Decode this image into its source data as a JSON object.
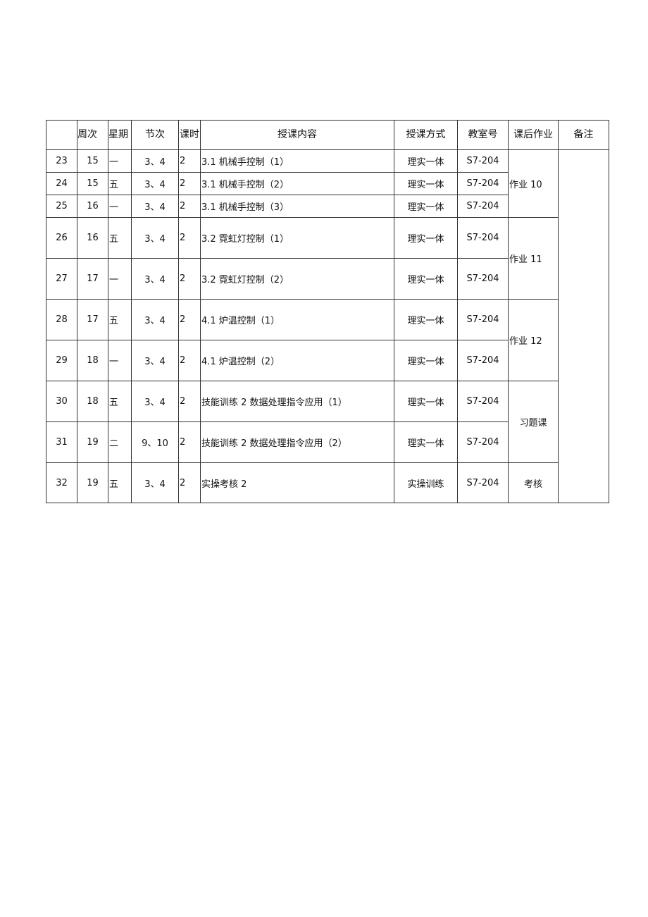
{
  "table": {
    "headers": [
      "",
      "周次",
      "星期",
      "节次",
      "课时",
      "授课内容",
      "授课方式",
      "教室号",
      "课后作业",
      "备注"
    ],
    "rows": [
      {
        "no": "23",
        "week": "15",
        "day": "一",
        "periods": "3、4",
        "hours": "2",
        "content": "3.1 机械手控制（1）",
        "method": "理实一体",
        "room": "S7-204"
      },
      {
        "no": "24",
        "week": "15",
        "day": "五",
        "periods": "3、4",
        "hours": "2",
        "content": "3.1 机械手控制（2）",
        "method": "理实一体",
        "room": "S7-204"
      },
      {
        "no": "25",
        "week": "16",
        "day": "一",
        "periods": "3、4",
        "hours": "2",
        "content": "3.1 机械手控制（3）",
        "method": "理实一体",
        "room": "S7-204"
      },
      {
        "no": "26",
        "week": "16",
        "day": "五",
        "periods": "3、4",
        "hours": "2",
        "content": "3.2 霓虹灯控制（1）",
        "method": "理实一体",
        "room": "S7-204"
      },
      {
        "no": "27",
        "week": "17",
        "day": "一",
        "periods": "3、4",
        "hours": "2",
        "content": "3.2 霓虹灯控制（2）",
        "method": "理实一体",
        "room": "S7-204"
      },
      {
        "no": "28",
        "week": "17",
        "day": "五",
        "periods": "3、4",
        "hours": "2",
        "content": "4.1 炉温控制（1）",
        "method": "理实一体",
        "room": "S7-204"
      },
      {
        "no": "29",
        "week": "18",
        "day": "一",
        "periods": "3、4",
        "hours": "2",
        "content": "4.1 炉温控制（2）",
        "method": "理实一体",
        "room": "S7-204"
      },
      {
        "no": "30",
        "week": "18",
        "day": "五",
        "periods": "3、4",
        "hours": "2",
        "content": "技能训练 2 数据处理指令应用（1）",
        "method": "理实一体",
        "room": "S7-204"
      },
      {
        "no": "31",
        "week": "19",
        "day": "二",
        "periods": "9、10",
        "hours": "2",
        "content": "技能训练 2 数据处理指令应用（2）",
        "method": "理实一体",
        "room": "S7-204"
      },
      {
        "no": "32",
        "week": "19",
        "day": "五",
        "periods": "3、4",
        "hours": "2",
        "content": "实操考核 2",
        "method": "实操训练",
        "room": "S7-204"
      }
    ],
    "homework_groups": [
      {
        "start": 0,
        "span": 3,
        "text": "作业 10",
        "align": "left"
      },
      {
        "start": 3,
        "span": 2,
        "text": "作业 11",
        "align": "left"
      },
      {
        "start": 5,
        "span": 2,
        "text": "作业 12",
        "align": "left"
      },
      {
        "start": 7,
        "span": 2,
        "text": "习题课",
        "align": "center"
      },
      {
        "start": 9,
        "span": 1,
        "text": "考核",
        "align": "center"
      }
    ],
    "notes": ""
  }
}
